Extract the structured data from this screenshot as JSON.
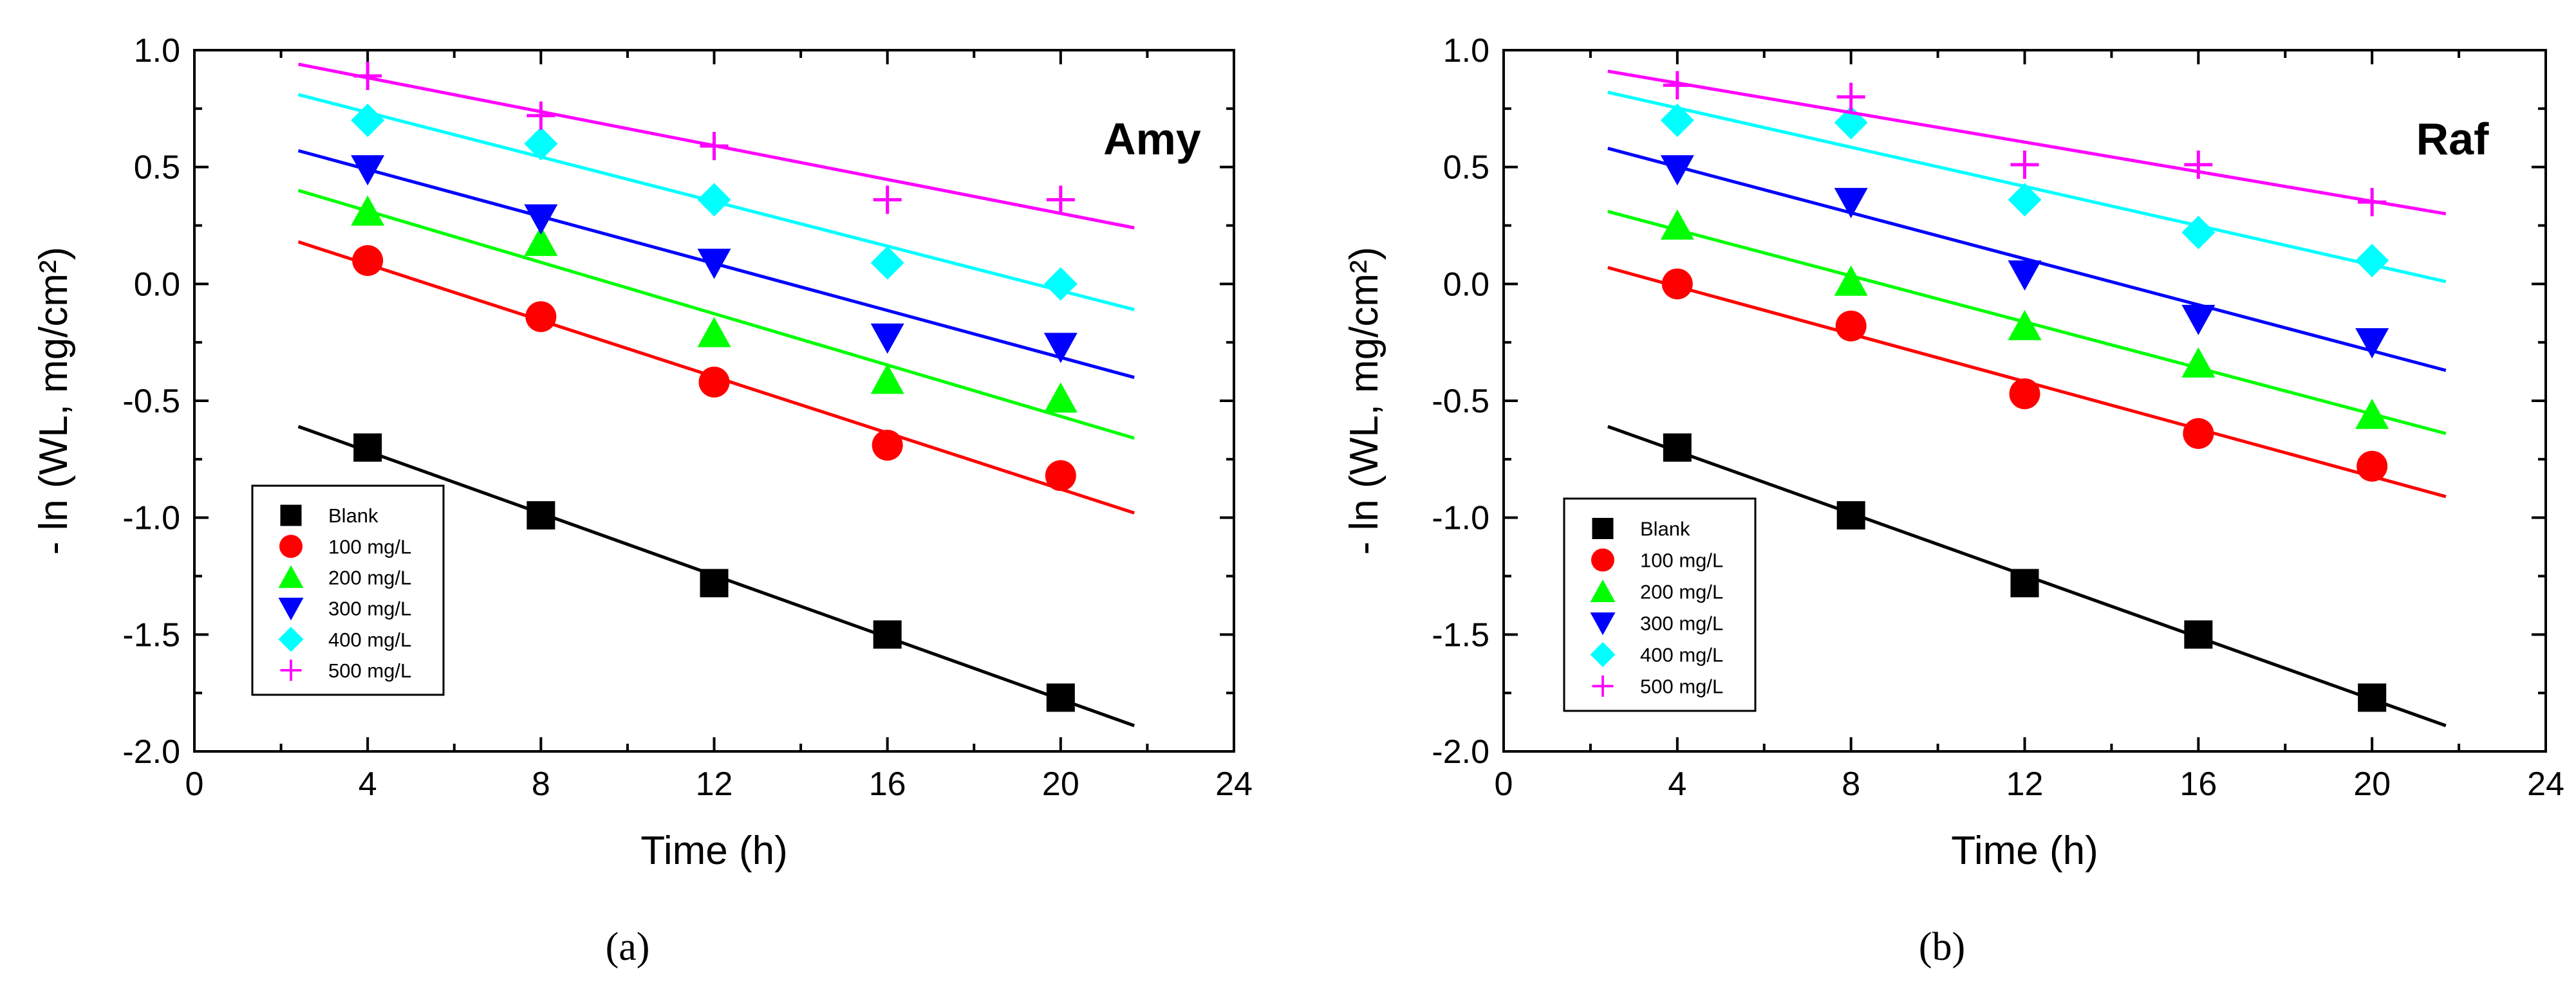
{
  "figure": {
    "captions": [
      "(a)",
      "(b)"
    ]
  },
  "chart_data": [
    {
      "type": "scatter",
      "panel_label": "Amy",
      "xlabel": "Time (h)",
      "ylabel": "- ln (WL, mg/cm²)",
      "xlim": [
        0,
        24
      ],
      "ylim": [
        -2.0,
        1.0
      ],
      "xticks": [
        "0",
        "4",
        "8",
        "12",
        "16",
        "20",
        "24"
      ],
      "yticks": [
        "-2.0",
        "-1.5",
        "-1.0",
        "-0.5",
        "0.0",
        "0.5",
        "1.0"
      ],
      "fit_x_range": [
        2.4,
        21.7
      ],
      "legend_position": "bottom-left",
      "series": [
        {
          "name": "Blank",
          "marker": "square",
          "color": "#000000",
          "x": [
            4,
            8,
            12,
            16,
            20
          ],
          "y": [
            -0.7,
            -0.99,
            -1.28,
            -1.5,
            -1.77
          ],
          "fit": [
            -0.61,
            -1.89
          ]
        },
        {
          "name": "100 mg/L",
          "marker": "circle",
          "color": "#ff0000",
          "x": [
            4,
            8,
            12,
            16,
            20
          ],
          "y": [
            0.1,
            -0.14,
            -0.42,
            -0.69,
            -0.82
          ],
          "fit": [
            0.18,
            -0.98
          ]
        },
        {
          "name": "200 mg/L",
          "marker": "triangle-up",
          "color": "#00ff00",
          "x": [
            4,
            8,
            12,
            16,
            20
          ],
          "y": [
            0.31,
            0.18,
            -0.21,
            -0.41,
            -0.49
          ],
          "fit": [
            0.4,
            -0.66
          ]
        },
        {
          "name": "300 mg/L",
          "marker": "triangle-down",
          "color": "#0000ff",
          "x": [
            4,
            8,
            12,
            16,
            20
          ],
          "y": [
            0.49,
            0.28,
            0.09,
            -0.23,
            -0.27
          ],
          "fit": [
            0.57,
            -0.4
          ]
        },
        {
          "name": "400 mg/L",
          "marker": "diamond",
          "color": "#00ffff",
          "x": [
            4,
            8,
            12,
            16,
            20
          ],
          "y": [
            0.7,
            0.6,
            0.36,
            0.09,
            0.0
          ],
          "fit": [
            0.81,
            -0.11
          ]
        },
        {
          "name": "500 mg/L",
          "marker": "plus",
          "color": "#ff00ff",
          "x": [
            4,
            8,
            12,
            16,
            20
          ],
          "y": [
            0.89,
            0.72,
            0.59,
            0.36,
            0.36
          ],
          "fit": [
            0.94,
            0.24
          ]
        }
      ]
    },
    {
      "type": "scatter",
      "panel_label": "Raf",
      "xlabel": "Time (h)",
      "ylabel": "- ln (WL, mg/cm²)",
      "xlim": [
        0,
        24
      ],
      "ylim": [
        -2.0,
        1.0
      ],
      "xticks": [
        "0",
        "4",
        "8",
        "12",
        "16",
        "20",
        "24"
      ],
      "yticks": [
        "-2.0",
        "-1.5",
        "-1.0",
        "-0.5",
        "0.0",
        "0.5",
        "1.0"
      ],
      "fit_x_range": [
        2.4,
        21.7
      ],
      "legend_position": "bottom-left",
      "series": [
        {
          "name": "Blank",
          "marker": "square",
          "color": "#000000",
          "x": [
            4,
            8,
            12,
            16,
            20
          ],
          "y": [
            -0.7,
            -0.99,
            -1.28,
            -1.5,
            -1.77
          ],
          "fit": [
            -0.61,
            -1.89
          ]
        },
        {
          "name": "100 mg/L",
          "marker": "circle",
          "color": "#ff0000",
          "x": [
            4,
            8,
            12,
            16,
            20
          ],
          "y": [
            0.0,
            -0.18,
            -0.47,
            -0.64,
            -0.78
          ],
          "fit": [
            0.07,
            -0.91
          ]
        },
        {
          "name": "200 mg/L",
          "marker": "triangle-up",
          "color": "#00ff00",
          "x": [
            4,
            8,
            12,
            16,
            20
          ],
          "y": [
            0.25,
            0.01,
            -0.18,
            -0.34,
            -0.56
          ],
          "fit": [
            0.31,
            -0.64
          ]
        },
        {
          "name": "300 mg/L",
          "marker": "triangle-down",
          "color": "#0000ff",
          "x": [
            4,
            8,
            12,
            16,
            20
          ],
          "y": [
            0.49,
            0.35,
            0.04,
            -0.15,
            -0.25
          ],
          "fit": [
            0.58,
            -0.37
          ]
        },
        {
          "name": "400 mg/L",
          "marker": "diamond",
          "color": "#00ffff",
          "x": [
            4,
            8,
            12,
            16,
            20
          ],
          "y": [
            0.7,
            0.69,
            0.36,
            0.22,
            0.1
          ],
          "fit": [
            0.82,
            0.01
          ]
        },
        {
          "name": "500 mg/L",
          "marker": "plus",
          "color": "#ff00ff",
          "x": [
            4,
            8,
            12,
            16,
            20
          ],
          "y": [
            0.85,
            0.8,
            0.51,
            0.51,
            0.35
          ],
          "fit": [
            0.91,
            0.3
          ]
        }
      ]
    }
  ]
}
